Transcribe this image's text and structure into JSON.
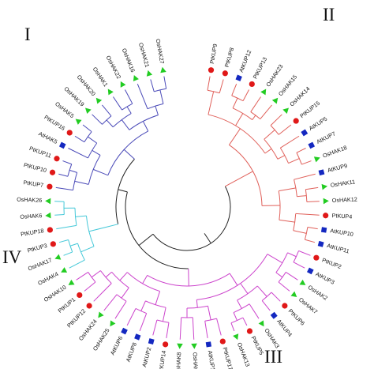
{
  "clade_labels": {
    "I": "I",
    "II": "II",
    "III": "III",
    "IV": "IV"
  },
  "legend_markers": {
    "Pt": "red-circle",
    "At": "blue-square",
    "Os": "green-triangle"
  },
  "colors": {
    "clade_I": "#4a4ab8",
    "clade_II": "#e0605a",
    "clade_III": "#cc44cc",
    "clade_IV": "#44c8d8",
    "backbone": "#222222",
    "pt_marker": "#e01818",
    "at_marker": "#1428c0",
    "os_marker": "#22cc22"
  },
  "taxa": {
    "pt_kup9": "PtKUP9",
    "pt_kup8": "PtKUP8",
    "at_kup12": "AtKUP12",
    "pt_kup13": "PtKUP13",
    "os_hak23": "OsHAK23",
    "os_hak15": "OsHAK15",
    "os_hak14": "OsHAK14",
    "pt_kup15": "PtKUP15",
    "at_kup5": "AtKUP5",
    "at_kup7": "AtKUP7",
    "os_hak18": "OsHAK18",
    "at_kup9": "AtKUP9",
    "os_hak11": "OsHAK11",
    "os_hak12": "OsHAK12",
    "pt_kup4": "PtKUP4",
    "at_kup10": "AtKUP10",
    "at_kup11": "AtKUP11",
    "pt_kup2": "PtKUP2",
    "at_kup3": "AtKUP3",
    "os_hak2": "OsHAK2",
    "os_hak7": "OsHAK7",
    "pt_kup6": "PtKUP6",
    "at_kup4": "AtKUP4",
    "os_hak3": "OsHAK3",
    "pt_kup5": "PtKUP5",
    "os_hak13": "OsHAK13",
    "pt_kup17": "PtKUP17",
    "at_kup1": "AtKUP1",
    "os_hak9": "OsHAK9",
    "os_hak8": "OsHAK8",
    "pt_kup14": "PtKUP14",
    "at_kup2": "AtKUP2",
    "at_kup8": "AtKUP8",
    "at_kup6": "AtKUP6",
    "os_hak25": "OsHAK25",
    "os_hak24": "OsHAK24",
    "pt_kup12": "PtKUP12",
    "pt_kup1": "PtKUP1",
    "os_hak10": "OsHAK10",
    "os_hak4": "OsHAK4",
    "os_hak17": "OsHAK17",
    "pt_kup3": "PtKUP3",
    "pt_kup18": "PtKUP18",
    "os_hak6": "OsHAK6",
    "os_hak26": "OsHAK26",
    "pt_kup7": "PtKUP7",
    "pt_kup10": "PtKUP10",
    "pt_kup11": "PtKUP11",
    "at_hak5": "AtHAK5",
    "pt_kup16": "PtKUP16",
    "os_hak5": "OsHAK5",
    "os_hak19": "OsHAK19",
    "os_hak20": "OsHAK20",
    "os_hak1": "OsHAK1",
    "os_hak22": "OsHAK22",
    "os_hak16": "OsHAK16",
    "os_hak21": "OsHAK21",
    "os_hak27": "OsHAK27"
  }
}
